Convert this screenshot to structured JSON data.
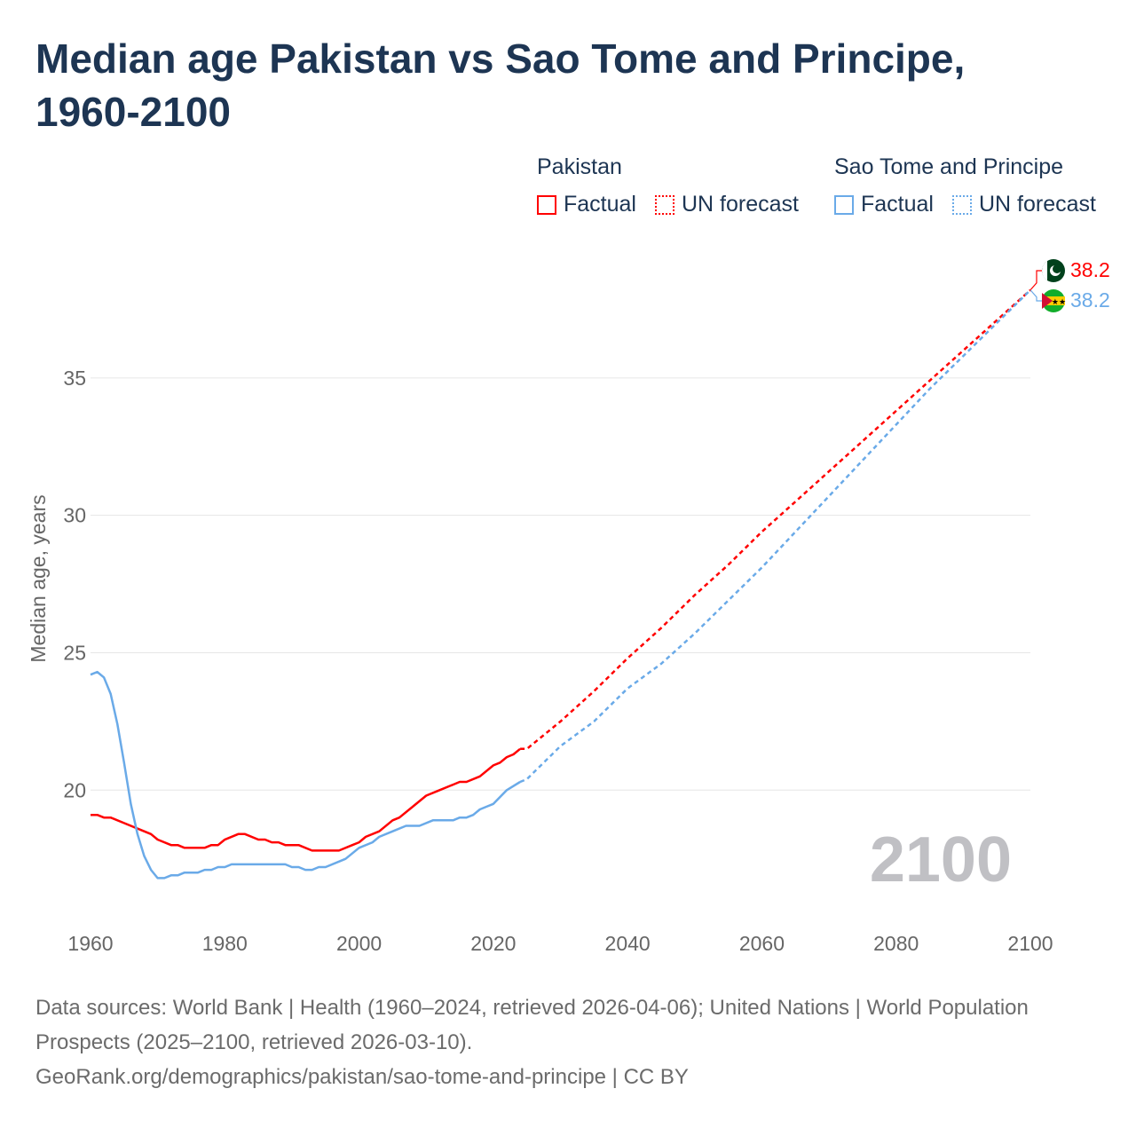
{
  "title": "Median age Pakistan vs Sao Tome and Principe, 1960-2100",
  "legend": {
    "groups": [
      {
        "name": "Pakistan",
        "factual": "Factual",
        "forecast": "UN forecast",
        "color": "#ff0000"
      },
      {
        "name": "Sao Tome and Principe",
        "factual": "Factual",
        "forecast": "UN forecast",
        "color": "#6aaae8"
      }
    ]
  },
  "year_watermark": "2100",
  "footer": {
    "line1": "Data sources: World Bank | Health (1960–2024, retrieved 2026-04-06); United Nations | World Population Prospects (2025–2100, retrieved 2026-03-10).",
    "line2": "GeoRank.org/demographics/pakistan/sao-tome-and-principe | CC BY"
  },
  "chart_data": {
    "type": "line",
    "title": "Median age Pakistan vs Sao Tome and Principe, 1960-2100",
    "xlabel": "",
    "ylabel": "Median age, years",
    "xlim": [
      1960,
      2100
    ],
    "ylim": [
      15.1,
      39
    ],
    "xticks": [
      1960,
      1980,
      2000,
      2020,
      2040,
      2060,
      2080,
      2100
    ],
    "yticks": [
      20,
      25,
      30,
      35
    ],
    "grid": true,
    "end_labels": [
      "38.2",
      "38.2"
    ],
    "series": [
      {
        "name": "Pakistan",
        "color": "#ff0000",
        "factual": [
          [
            1960,
            19.1
          ],
          [
            1961,
            19.1
          ],
          [
            1962,
            19.0
          ],
          [
            1963,
            19.0
          ],
          [
            1965,
            18.8
          ],
          [
            1968,
            18.5
          ],
          [
            1969,
            18.4
          ],
          [
            1970,
            18.2
          ],
          [
            1972,
            18.0
          ],
          [
            1973,
            18.0
          ],
          [
            1974,
            17.9
          ],
          [
            1977,
            17.9
          ],
          [
            1978,
            18.0
          ],
          [
            1979,
            18.0
          ],
          [
            1980,
            18.2
          ],
          [
            1982,
            18.4
          ],
          [
            1983,
            18.4
          ],
          [
            1985,
            18.2
          ],
          [
            1986,
            18.2
          ],
          [
            1987,
            18.1
          ],
          [
            1988,
            18.1
          ],
          [
            1989,
            18.0
          ],
          [
            1991,
            18.0
          ],
          [
            1993,
            17.8
          ],
          [
            1997,
            17.8
          ],
          [
            1999,
            18.0
          ],
          [
            2000,
            18.1
          ],
          [
            2001,
            18.3
          ],
          [
            2003,
            18.5
          ],
          [
            2005,
            18.9
          ],
          [
            2006,
            19.0
          ],
          [
            2008,
            19.4
          ],
          [
            2010,
            19.8
          ],
          [
            2012,
            20.0
          ],
          [
            2014,
            20.2
          ],
          [
            2015,
            20.3
          ],
          [
            2016,
            20.3
          ],
          [
            2018,
            20.5
          ],
          [
            2020,
            20.9
          ],
          [
            2021,
            21.0
          ],
          [
            2022,
            21.2
          ],
          [
            2023,
            21.3
          ],
          [
            2024,
            21.5
          ]
        ],
        "forecast": [
          [
            2024,
            21.5
          ],
          [
            2025,
            21.5
          ],
          [
            2030,
            22.5
          ],
          [
            2035,
            23.6
          ],
          [
            2040,
            24.8
          ],
          [
            2045,
            25.9
          ],
          [
            2050,
            27.1
          ],
          [
            2055,
            28.2
          ],
          [
            2060,
            29.4
          ],
          [
            2065,
            30.5
          ],
          [
            2070,
            31.6
          ],
          [
            2075,
            32.7
          ],
          [
            2080,
            33.8
          ],
          [
            2085,
            34.9
          ],
          [
            2090,
            36.0
          ],
          [
            2095,
            37.1
          ],
          [
            2100,
            38.2
          ]
        ]
      },
      {
        "name": "Sao Tome and Principe",
        "color": "#6aaae8",
        "factual": [
          [
            1960,
            24.2
          ],
          [
            1961,
            24.3
          ],
          [
            1962,
            24.1
          ],
          [
            1963,
            23.5
          ],
          [
            1964,
            22.4
          ],
          [
            1965,
            21.0
          ],
          [
            1966,
            19.5
          ],
          [
            1967,
            18.4
          ],
          [
            1968,
            17.6
          ],
          [
            1969,
            17.1
          ],
          [
            1970,
            16.8
          ],
          [
            1971,
            16.8
          ],
          [
            1972,
            16.9
          ],
          [
            1973,
            16.9
          ],
          [
            1974,
            17.0
          ],
          [
            1976,
            17.0
          ],
          [
            1977,
            17.1
          ],
          [
            1978,
            17.1
          ],
          [
            1979,
            17.2
          ],
          [
            1980,
            17.2
          ],
          [
            1981,
            17.3
          ],
          [
            1989,
            17.3
          ],
          [
            1990,
            17.2
          ],
          [
            1991,
            17.2
          ],
          [
            1992,
            17.1
          ],
          [
            1993,
            17.1
          ],
          [
            1994,
            17.2
          ],
          [
            1995,
            17.2
          ],
          [
            1997,
            17.4
          ],
          [
            1998,
            17.5
          ],
          [
            2000,
            17.9
          ],
          [
            2002,
            18.1
          ],
          [
            2003,
            18.3
          ],
          [
            2005,
            18.5
          ],
          [
            2007,
            18.7
          ],
          [
            2009,
            18.7
          ],
          [
            2011,
            18.9
          ],
          [
            2014,
            18.9
          ],
          [
            2015,
            19.0
          ],
          [
            2016,
            19.0
          ],
          [
            2017,
            19.1
          ],
          [
            2018,
            19.3
          ],
          [
            2019,
            19.4
          ],
          [
            2020,
            19.5
          ],
          [
            2022,
            20.0
          ],
          [
            2024,
            20.3
          ]
        ],
        "forecast": [
          [
            2024,
            20.3
          ],
          [
            2025,
            20.4
          ],
          [
            2030,
            21.6
          ],
          [
            2035,
            22.5
          ],
          [
            2040,
            23.7
          ],
          [
            2045,
            24.6
          ],
          [
            2050,
            25.7
          ],
          [
            2055,
            26.9
          ],
          [
            2060,
            28.1
          ],
          [
            2065,
            29.4
          ],
          [
            2070,
            30.7
          ],
          [
            2075,
            32.0
          ],
          [
            2080,
            33.3
          ],
          [
            2085,
            34.6
          ],
          [
            2090,
            35.8
          ],
          [
            2095,
            37.0
          ],
          [
            2100,
            38.2
          ]
        ]
      }
    ]
  }
}
